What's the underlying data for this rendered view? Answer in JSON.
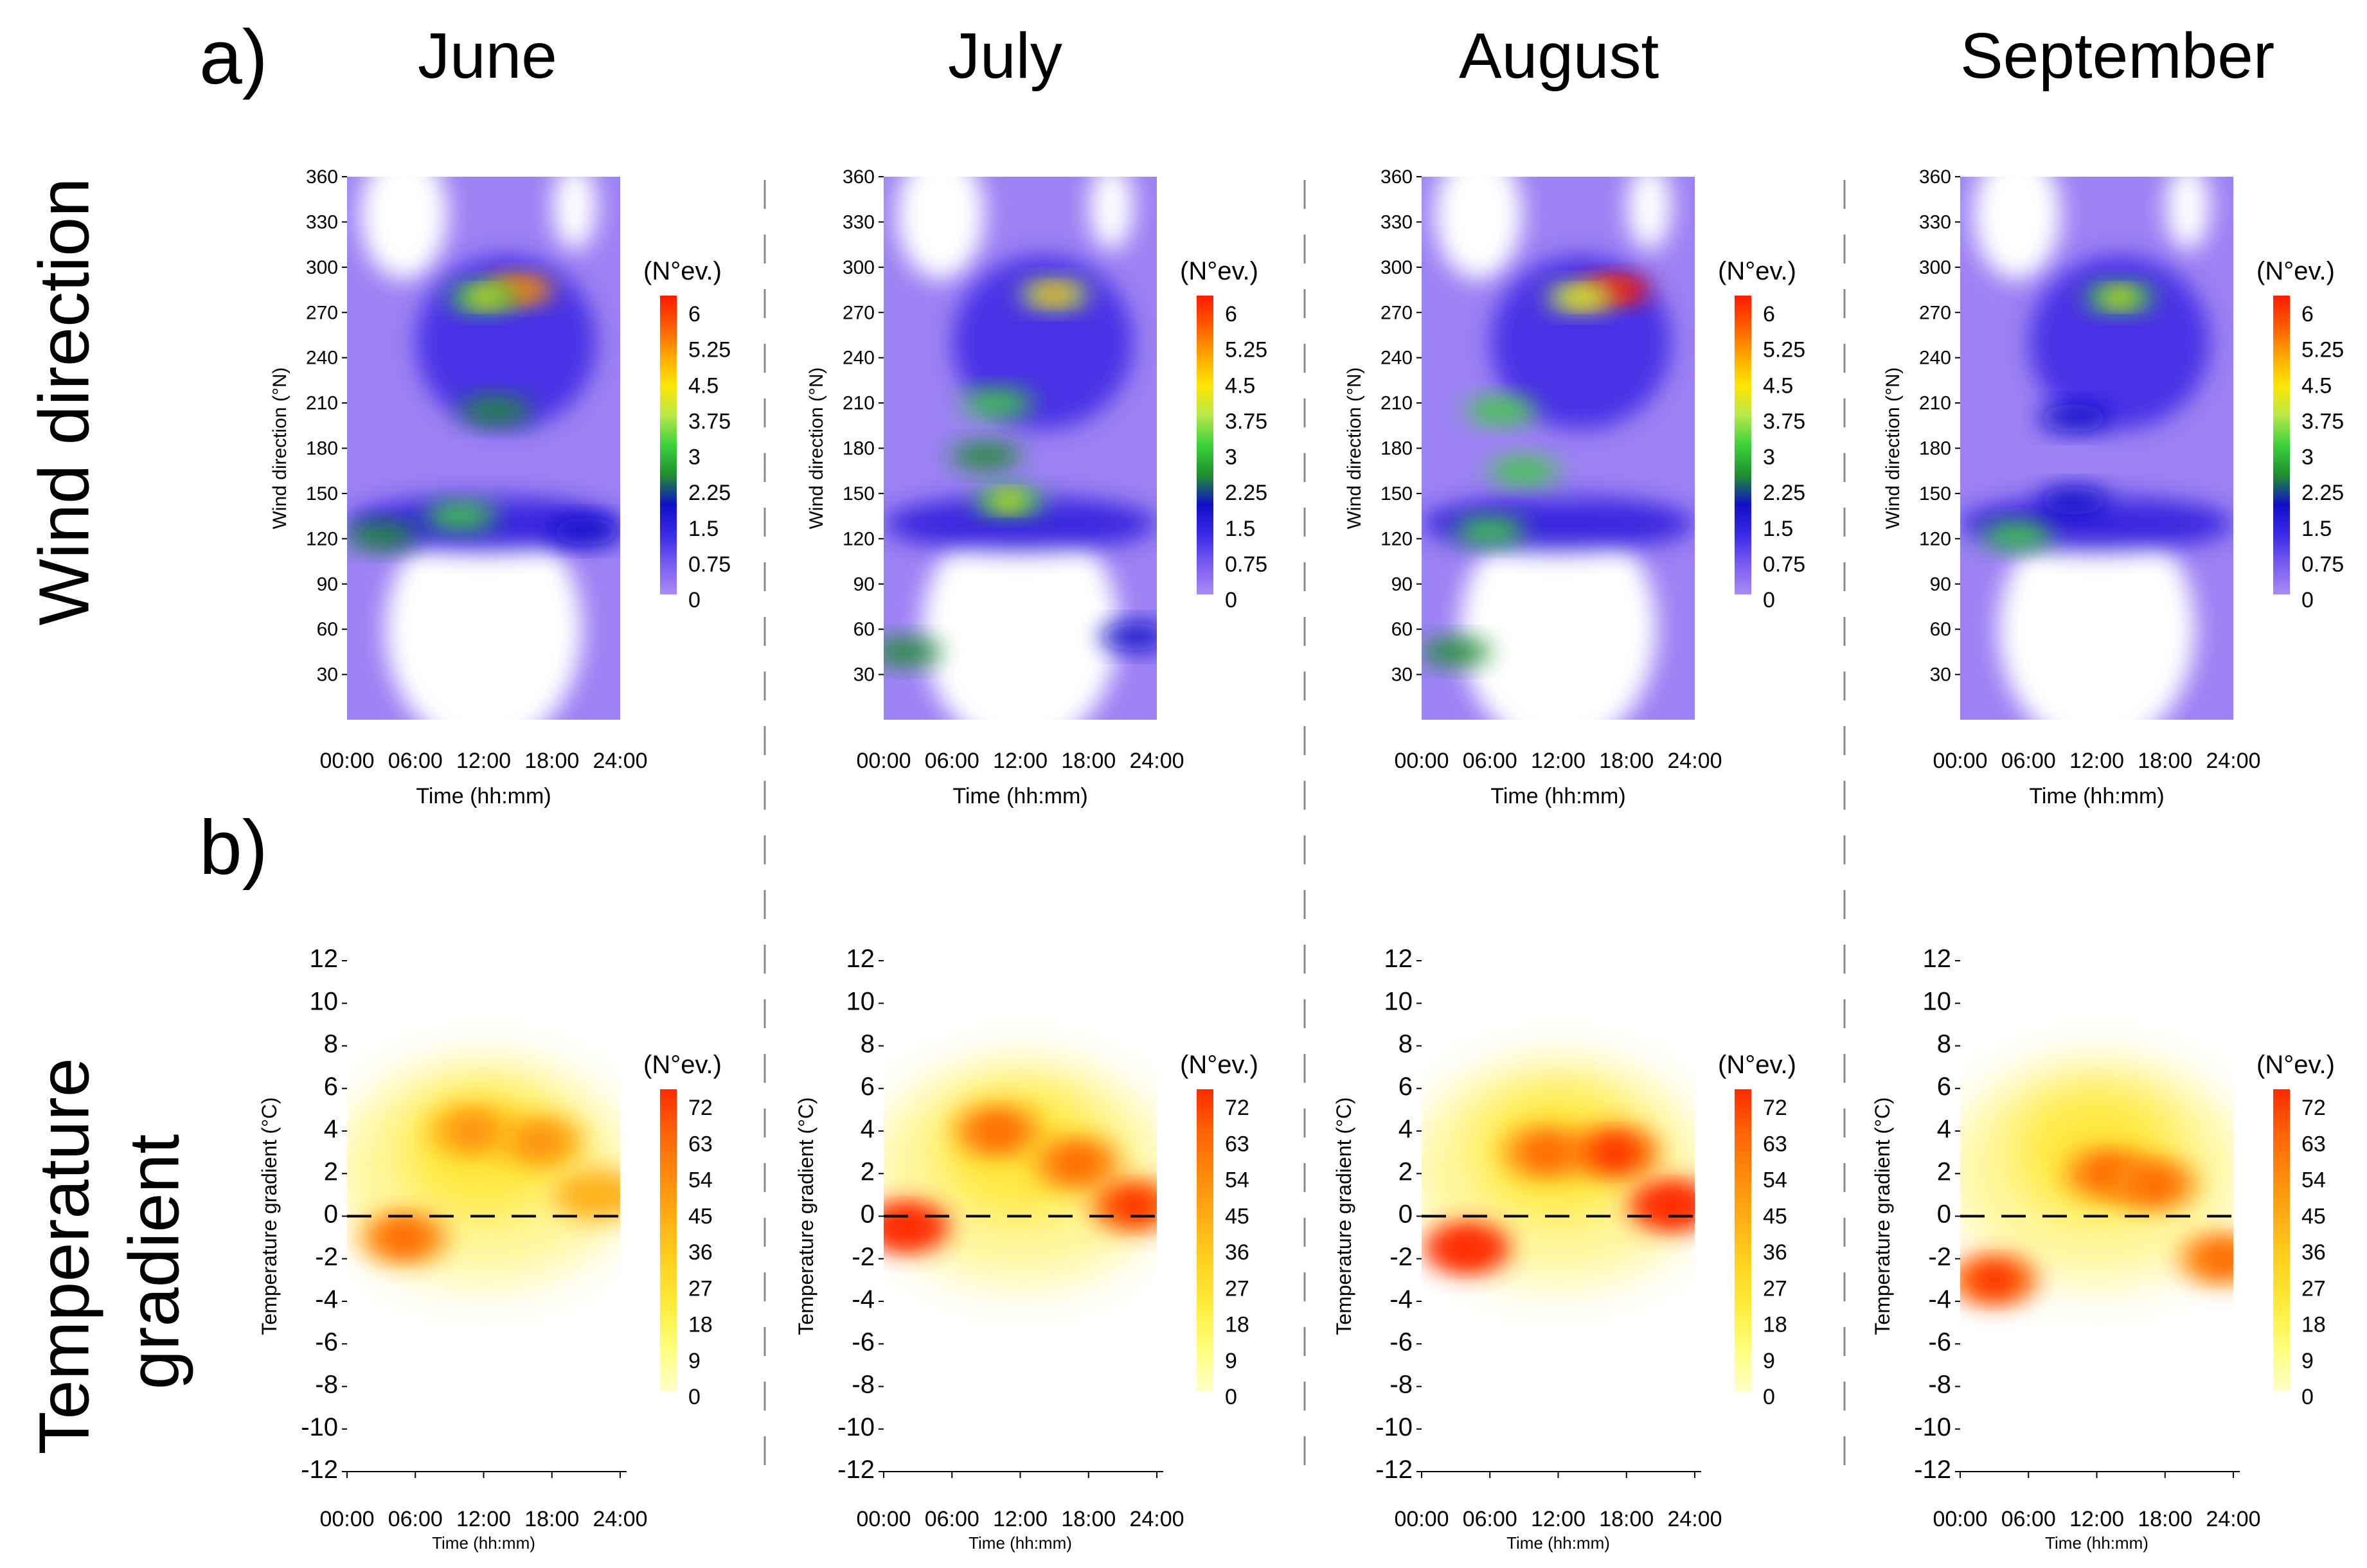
{
  "figure": {
    "panel_a_label": "a)",
    "panel_b_label": "b)",
    "row_a_title": "Wind direction",
    "row_b_title_line1": "Temperature",
    "row_b_title_line2": "gradient",
    "months": [
      "June",
      "July",
      "August",
      "September"
    ]
  },
  "colors": {
    "wind_scale": [
      "#ffffff",
      "#a98bf5",
      "#7a5cf0",
      "#3b2be8",
      "#1010c8",
      "#1f8f2e",
      "#3cd23c",
      "#b8e84a",
      "#ffe600",
      "#ffa500",
      "#ff5a00",
      "#ff1a00"
    ],
    "temp_scale": [
      "#ffffff",
      "#ffffc8",
      "#ffff7a",
      "#ffeb3a",
      "#ffd21e",
      "#ffae14",
      "#ff8a0c",
      "#ff6306",
      "#ff2a00"
    ]
  },
  "chart_data": [
    {
      "type": "heatmap",
      "row": "Wind direction",
      "month": "June",
      "xlabel": "Time (hh:mm)",
      "ylabel": "Wind direction (°N)",
      "x_ticks": [
        "00:00",
        "06:00",
        "12:00",
        "18:00",
        "24:00"
      ],
      "y_ticks": [
        30,
        60,
        90,
        120,
        150,
        180,
        210,
        240,
        270,
        300,
        330,
        360
      ],
      "ylim": [
        0,
        360
      ],
      "colorbar_title": "(N°ev.)",
      "colorbar_ticks": [
        "6",
        "5.25",
        "4.5",
        "3.75",
        "3",
        "2.25",
        "1.5",
        "0.75",
        "0"
      ],
      "hotspots": [
        {
          "hour": 15,
          "deg": 285,
          "value": 4.5
        },
        {
          "hour": 12,
          "deg": 280,
          "value": 3.2
        },
        {
          "hour": 13,
          "deg": 205,
          "value": 2.5
        },
        {
          "hour": 10,
          "deg": 135,
          "value": 2.8
        },
        {
          "hour": 3,
          "deg": 122,
          "value": 2.5
        },
        {
          "hour": 21,
          "deg": 125,
          "value": 1.8
        }
      ]
    },
    {
      "type": "heatmap",
      "row": "Wind direction",
      "month": "July",
      "xlabel": "Time (hh:mm)",
      "ylabel": "Wind direction (°N)",
      "x_ticks": [
        "00:00",
        "06:00",
        "12:00",
        "18:00",
        "24:00"
      ],
      "y_ticks": [
        30,
        60,
        90,
        120,
        150,
        180,
        210,
        240,
        270,
        300,
        330,
        360
      ],
      "ylim": [
        0,
        360
      ],
      "colorbar_title": "(N°ev.)",
      "colorbar_ticks": [
        "6",
        "5.25",
        "4.5",
        "3.75",
        "3",
        "2.25",
        "1.5",
        "0.75",
        "0"
      ],
      "hotspots": [
        {
          "hour": 15,
          "deg": 282,
          "value": 3.8
        },
        {
          "hour": 10,
          "deg": 210,
          "value": 3.0
        },
        {
          "hour": 11,
          "deg": 145,
          "value": 3.2
        },
        {
          "hour": 9,
          "deg": 175,
          "value": 2.6
        },
        {
          "hour": 2,
          "deg": 45,
          "value": 2.2
        },
        {
          "hour": 22,
          "deg": 55,
          "value": 2.0
        }
      ]
    },
    {
      "type": "heatmap",
      "row": "Wind direction",
      "month": "August",
      "xlabel": "Time (hh:mm)",
      "ylabel": "Wind direction (°N)",
      "x_ticks": [
        "00:00",
        "06:00",
        "12:00",
        "18:00",
        "24:00"
      ],
      "y_ticks": [
        30,
        60,
        90,
        120,
        150,
        180,
        210,
        240,
        270,
        300,
        330,
        360
      ],
      "ylim": [
        0,
        360
      ],
      "colorbar_title": "(N°ev.)",
      "colorbar_ticks": [
        "6",
        "5.25",
        "4.5",
        "3.75",
        "3",
        "2.25",
        "1.5",
        "0.75",
        "0"
      ],
      "hotspots": [
        {
          "hour": 17,
          "deg": 285,
          "value": 6.0
        },
        {
          "hour": 14,
          "deg": 280,
          "value": 3.5
        },
        {
          "hour": 7,
          "deg": 205,
          "value": 3.0
        },
        {
          "hour": 9,
          "deg": 165,
          "value": 3.0
        },
        {
          "hour": 6,
          "deg": 125,
          "value": 2.8
        },
        {
          "hour": 3,
          "deg": 45,
          "value": 2.2
        }
      ]
    },
    {
      "type": "heatmap",
      "row": "Wind direction",
      "month": "September",
      "xlabel": "Time (hh:mm)",
      "ylabel": "Wind direction (°N)",
      "x_ticks": [
        "00:00",
        "06:00",
        "12:00",
        "18:00",
        "24:00"
      ],
      "y_ticks": [
        30,
        60,
        90,
        120,
        150,
        180,
        210,
        240,
        270,
        300,
        330,
        360
      ],
      "ylim": [
        0,
        360
      ],
      "colorbar_title": "(N°ev.)",
      "colorbar_ticks": [
        "6",
        "5.25",
        "4.5",
        "3.75",
        "3",
        "2.25",
        "1.5",
        "0.75",
        "0"
      ],
      "hotspots": [
        {
          "hour": 14,
          "deg": 280,
          "value": 3.2
        },
        {
          "hour": 5,
          "deg": 122,
          "value": 2.8
        },
        {
          "hour": 10,
          "deg": 200,
          "value": 1.8
        },
        {
          "hour": 10,
          "deg": 145,
          "value": 1.8
        }
      ]
    },
    {
      "type": "heatmap",
      "row": "Temperature gradient",
      "month": "June",
      "xlabel": "Time (hh:mm)",
      "ylabel": "Temperature gradient (°C)",
      "x_ticks": [
        "00:00",
        "06:00",
        "12:00",
        "18:00",
        "24:00"
      ],
      "y_ticks": [
        -12,
        -10,
        -8,
        -6,
        -4,
        -2,
        0,
        2,
        4,
        6,
        8,
        10,
        12
      ],
      "ylim": [
        -12,
        12
      ],
      "colorbar_title": "(N°ev.)",
      "colorbar_ticks": [
        "72",
        "63",
        "54",
        "45",
        "36",
        "27",
        "18",
        "9",
        "0"
      ],
      "hotspots": [
        {
          "hour": 5,
          "deg": -1,
          "value": 55
        },
        {
          "hour": 11,
          "deg": 4,
          "value": 45
        },
        {
          "hour": 17,
          "deg": 3.5,
          "value": 40
        },
        {
          "hour": 22,
          "deg": 1,
          "value": 36
        }
      ]
    },
    {
      "type": "heatmap",
      "row": "Temperature gradient",
      "month": "July",
      "xlabel": "Time (hh:mm)",
      "ylabel": "Temperature gradient (°C)",
      "x_ticks": [
        "00:00",
        "06:00",
        "12:00",
        "18:00",
        "24:00"
      ],
      "y_ticks": [
        -12,
        -10,
        -8,
        -6,
        -4,
        -2,
        0,
        2,
        4,
        6,
        8,
        10,
        12
      ],
      "ylim": [
        -12,
        12
      ],
      "colorbar_title": "(N°ev.)",
      "colorbar_ticks": [
        "72",
        "63",
        "54",
        "45",
        "36",
        "27",
        "18",
        "9",
        "0"
      ],
      "hotspots": [
        {
          "hour": 2,
          "deg": -0.5,
          "value": 68
        },
        {
          "hour": 10,
          "deg": 4,
          "value": 55
        },
        {
          "hour": 17,
          "deg": 2.5,
          "value": 55
        },
        {
          "hour": 22,
          "deg": 0.5,
          "value": 60
        }
      ]
    },
    {
      "type": "heatmap",
      "row": "Temperature gradient",
      "month": "August",
      "xlabel": "Time (hh:mm)",
      "ylabel": "Temperature gradient (°C)",
      "x_ticks": [
        "00:00",
        "06:00",
        "12:00",
        "18:00",
        "24:00"
      ],
      "y_ticks": [
        -12,
        -10,
        -8,
        -6,
        -4,
        -2,
        0,
        2,
        4,
        6,
        8,
        10,
        12
      ],
      "ylim": [
        -12,
        12
      ],
      "colorbar_title": "(N°ev.)",
      "colorbar_ticks": [
        "72",
        "63",
        "54",
        "45",
        "36",
        "27",
        "18",
        "9",
        "0"
      ],
      "hotspots": [
        {
          "hour": 4,
          "deg": -1.5,
          "value": 70
        },
        {
          "hour": 11,
          "deg": 3,
          "value": 50
        },
        {
          "hour": 17,
          "deg": 3,
          "value": 60
        },
        {
          "hour": 22,
          "deg": 0.5,
          "value": 68
        }
      ]
    },
    {
      "type": "heatmap",
      "row": "Temperature gradient",
      "month": "September",
      "xlabel": "Time (hh:mm)",
      "ylabel": "Temperature gradient (°C)",
      "x_ticks": [
        "00:00",
        "06:00",
        "12:00",
        "18:00",
        "24:00"
      ],
      "y_ticks": [
        -12,
        -10,
        -8,
        -6,
        -4,
        -2,
        0,
        2,
        4,
        6,
        8,
        10,
        12
      ],
      "ylim": [
        -12,
        12
      ],
      "colorbar_title": "(N°ev.)",
      "colorbar_ticks": [
        "72",
        "63",
        "54",
        "45",
        "36",
        "27",
        "18",
        "9",
        "0"
      ],
      "hotspots": [
        {
          "hour": 3,
          "deg": -3,
          "value": 62
        },
        {
          "hour": 13,
          "deg": 2,
          "value": 55
        },
        {
          "hour": 17,
          "deg": 1.5,
          "value": 50
        },
        {
          "hour": 23,
          "deg": -2,
          "value": 48
        }
      ]
    }
  ]
}
